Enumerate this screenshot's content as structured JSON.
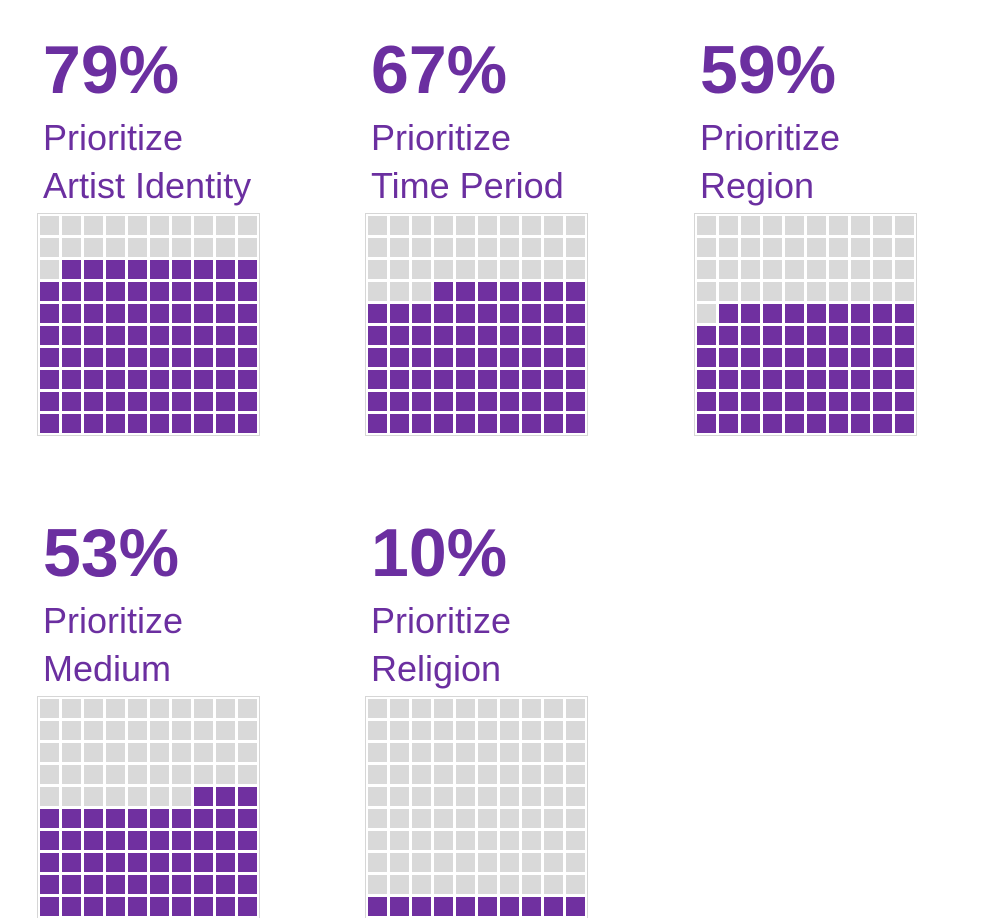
{
  "colors": {
    "text": "#6B2FA0",
    "filled": "#7030A0",
    "empty": "#d9d9d9"
  },
  "chart_data": {
    "type": "waffle",
    "grid": "10x10",
    "panels": [
      {
        "value_label": "79%",
        "value": 79,
        "line1": "Prioritize",
        "line2": "Artist Identity"
      },
      {
        "value_label": "67%",
        "value": 67,
        "line1": "Prioritize",
        "line2": "Time Period"
      },
      {
        "value_label": "59%",
        "value": 59,
        "line1": "Prioritize",
        "line2": "Region"
      },
      {
        "value_label": "53%",
        "value": 53,
        "line1": "Prioritize",
        "line2": "Medium"
      },
      {
        "value_label": "10%",
        "value": 10,
        "line1": "Prioritize",
        "line2": "Religion"
      }
    ]
  }
}
